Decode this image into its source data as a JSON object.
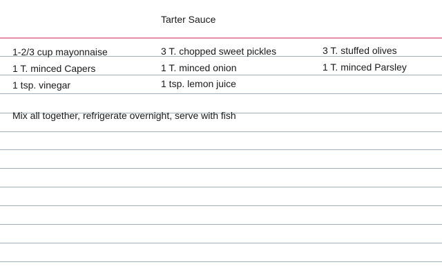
{
  "card": {
    "title": "Tarter Sauce",
    "ingredients": [
      [
        "1-2/3 cup mayonnaise",
        "3 T. chopped sweet pickles",
        "3 T. stuffed olives"
      ],
      [
        "1 T. minced Capers",
        "1 T. minced onion",
        "1 T. minced Parsley"
      ],
      [
        "1 tsp. vinegar",
        "1 tsp. lemon juice"
      ]
    ],
    "instructions": "Mix all together, refrigerate overnight, serve with fish"
  },
  "colors": {
    "header_rule": "#e58ea8",
    "ruled_lines": "#9fb0b8"
  }
}
